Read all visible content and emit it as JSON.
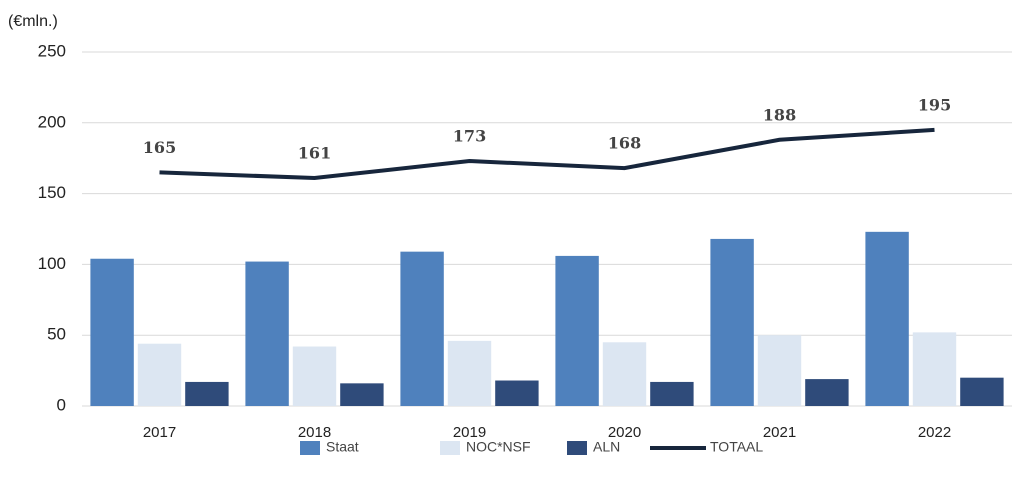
{
  "chart_data": {
    "type": "bar",
    "y_label": "(€mln.)",
    "categories": [
      "2017",
      "2018",
      "2019",
      "2020",
      "2021",
      "2022"
    ],
    "series": [
      {
        "name": "Staat",
        "color": "#4f81bd",
        "values": [
          104,
          102,
          109,
          106,
          118,
          123
        ]
      },
      {
        "name": "NOC*NSF",
        "color": "#dce6f2",
        "values": [
          44,
          42,
          46,
          45,
          50,
          52
        ]
      },
      {
        "name": "ALN",
        "color": "#2f4b7a",
        "values": [
          17,
          16,
          18,
          17,
          19,
          20
        ]
      },
      {
        "name": "TOTAAL",
        "type": "line",
        "color": "#17263c",
        "values": [
          165,
          161,
          173,
          168,
          188,
          195
        ]
      }
    ],
    "ylim": [
      0,
      250
    ],
    "yticks": [
      0,
      50,
      100,
      150,
      200,
      250
    ],
    "grid": true,
    "legend": "bottom"
  }
}
